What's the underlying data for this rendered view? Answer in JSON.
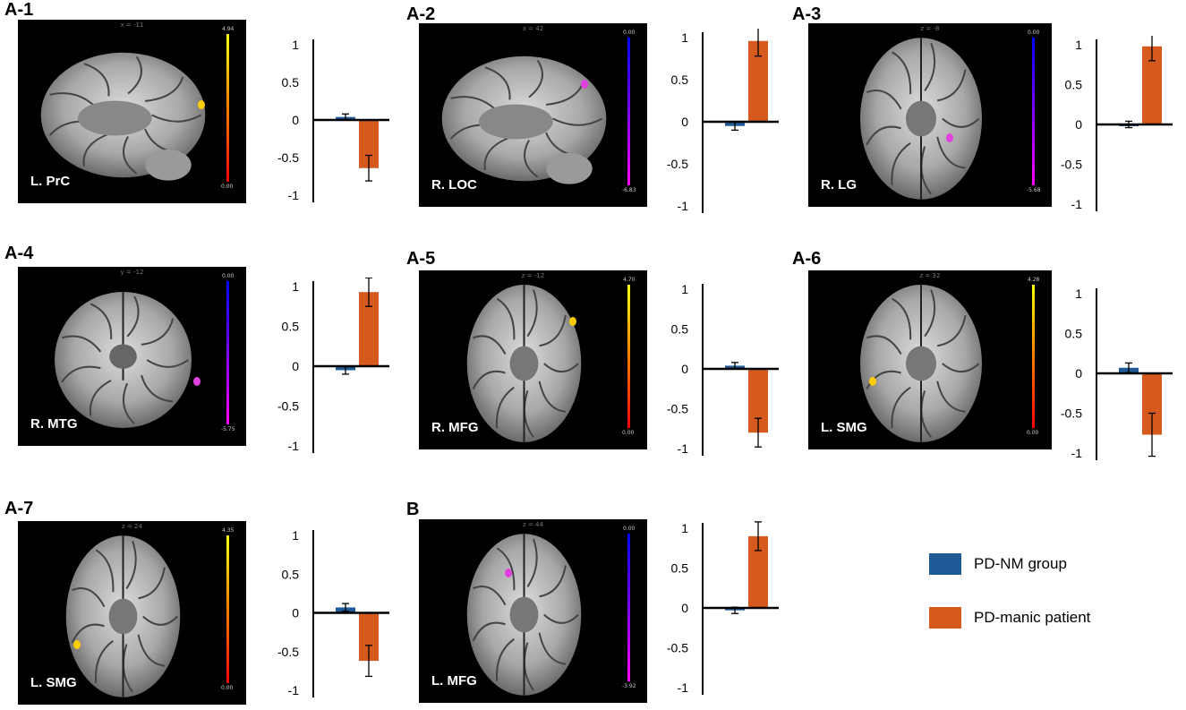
{
  "colors": {
    "pd_nm": "#1f5a96",
    "pd_manic": "#d65a1e",
    "axis": "#000000",
    "hot_scale": [
      "#ff0000",
      "#ffff00"
    ],
    "cool_scale": [
      "#ff00ff",
      "#0000ff"
    ]
  },
  "legend": [
    {
      "label": "PD-NM group",
      "color_key": "pd_nm"
    },
    {
      "label": "PD-manic patient",
      "color_key": "pd_manic"
    }
  ],
  "panels": [
    {
      "id": "A-1",
      "region": "L. PrC",
      "view": "sagittal",
      "coord": "x = -11",
      "colorbar": "hot",
      "cb_top": "4.94",
      "cb_bottom": "0.00"
    },
    {
      "id": "A-2",
      "region": "R. LOC",
      "view": "sagittal",
      "coord": "x = 42",
      "colorbar": "cool",
      "cb_top": "0.00",
      "cb_bottom": "-6.83"
    },
    {
      "id": "A-3",
      "region": "R. LG",
      "view": "axial",
      "coord": "z = -8",
      "colorbar": "cool",
      "cb_top": "0.00",
      "cb_bottom": "-5.68"
    },
    {
      "id": "A-4",
      "region": "R. MTG",
      "view": "coronal",
      "coord": "y = -12",
      "colorbar": "cool",
      "cb_top": "0.00",
      "cb_bottom": "-5.75"
    },
    {
      "id": "A-5",
      "region": "R. MFG",
      "view": "axial",
      "coord": "z = -12",
      "colorbar": "hot",
      "cb_top": "4.70",
      "cb_bottom": "0.00"
    },
    {
      "id": "A-6",
      "region": "L. SMG",
      "view": "axial",
      "coord": "z = 32",
      "colorbar": "hot",
      "cb_top": "4.28",
      "cb_bottom": "0.00"
    },
    {
      "id": "A-7",
      "region": "L. SMG",
      "view": "axial",
      "coord": "z = 24",
      "colorbar": "hot",
      "cb_top": "4.35",
      "cb_bottom": "0.00"
    },
    {
      "id": "B",
      "region": "L. MFG",
      "view": "axial",
      "coord": "z = 44",
      "colorbar": "cool",
      "cb_top": "0.00",
      "cb_bottom": "-3.92"
    }
  ],
  "chart_data": [
    {
      "type": "bar",
      "panel": "A-1",
      "categories": [
        "PD-NM group",
        "PD-manic patient"
      ],
      "values": [
        0.04,
        -0.64
      ],
      "errors": [
        0.04,
        0.17
      ],
      "ylim": [
        -1,
        1
      ],
      "yticks": [
        "1",
        "0.5",
        "0",
        "-0.5",
        "-1"
      ]
    },
    {
      "type": "bar",
      "panel": "A-2",
      "categories": [
        "PD-NM group",
        "PD-manic patient"
      ],
      "values": [
        -0.05,
        0.96
      ],
      "errors": [
        0.05,
        0.18
      ],
      "ylim": [
        -1,
        1
      ],
      "yticks": [
        "1",
        "0.5",
        "0",
        "-0.5",
        "-1"
      ]
    },
    {
      "type": "bar",
      "panel": "A-3",
      "categories": [
        "PD-NM group",
        "PD-manic patient"
      ],
      "values": [
        0.0,
        0.98
      ],
      "errors": [
        0.04,
        0.18
      ],
      "ylim": [
        -1,
        1
      ],
      "yticks": [
        "1",
        "0.5",
        "0",
        "-0.5",
        "-1"
      ]
    },
    {
      "type": "bar",
      "panel": "A-4",
      "categories": [
        "PD-NM group",
        "PD-manic patient"
      ],
      "values": [
        -0.05,
        0.93
      ],
      "errors": [
        0.05,
        0.18
      ],
      "ylim": [
        -1,
        1
      ],
      "yticks": [
        "1",
        "0.5",
        "0",
        "-0.5",
        "-1"
      ]
    },
    {
      "type": "bar",
      "panel": "A-5",
      "categories": [
        "PD-NM group",
        "PD-manic patient"
      ],
      "values": [
        0.04,
        -0.8
      ],
      "errors": [
        0.04,
        0.18
      ],
      "ylim": [
        -1,
        1
      ],
      "yticks": [
        "1",
        "0.5",
        "0",
        "-0.5",
        "-1"
      ]
    },
    {
      "type": "bar",
      "panel": "A-6",
      "categories": [
        "PD-NM group",
        "PD-manic patient"
      ],
      "values": [
        0.07,
        -0.77
      ],
      "errors": [
        0.06,
        0.27
      ],
      "ylim": [
        -1,
        1
      ],
      "yticks": [
        "1",
        "0.5",
        "0",
        "-0.5",
        "-1"
      ]
    },
    {
      "type": "bar",
      "panel": "A-7",
      "categories": [
        "PD-NM group",
        "PD-manic patient"
      ],
      "values": [
        0.07,
        -0.62
      ],
      "errors": [
        0.05,
        0.2
      ],
      "ylim": [
        -1,
        1
      ],
      "yticks": [
        "1",
        "0.5",
        "0",
        "-0.5",
        "-1"
      ]
    },
    {
      "type": "bar",
      "panel": "B",
      "categories": [
        "PD-NM group",
        "PD-manic patient"
      ],
      "values": [
        -0.03,
        0.9
      ],
      "errors": [
        0.04,
        0.18
      ],
      "ylim": [
        -1,
        1
      ],
      "yticks": [
        "1",
        "0.5",
        "0",
        "-0.5",
        "-1"
      ]
    }
  ]
}
